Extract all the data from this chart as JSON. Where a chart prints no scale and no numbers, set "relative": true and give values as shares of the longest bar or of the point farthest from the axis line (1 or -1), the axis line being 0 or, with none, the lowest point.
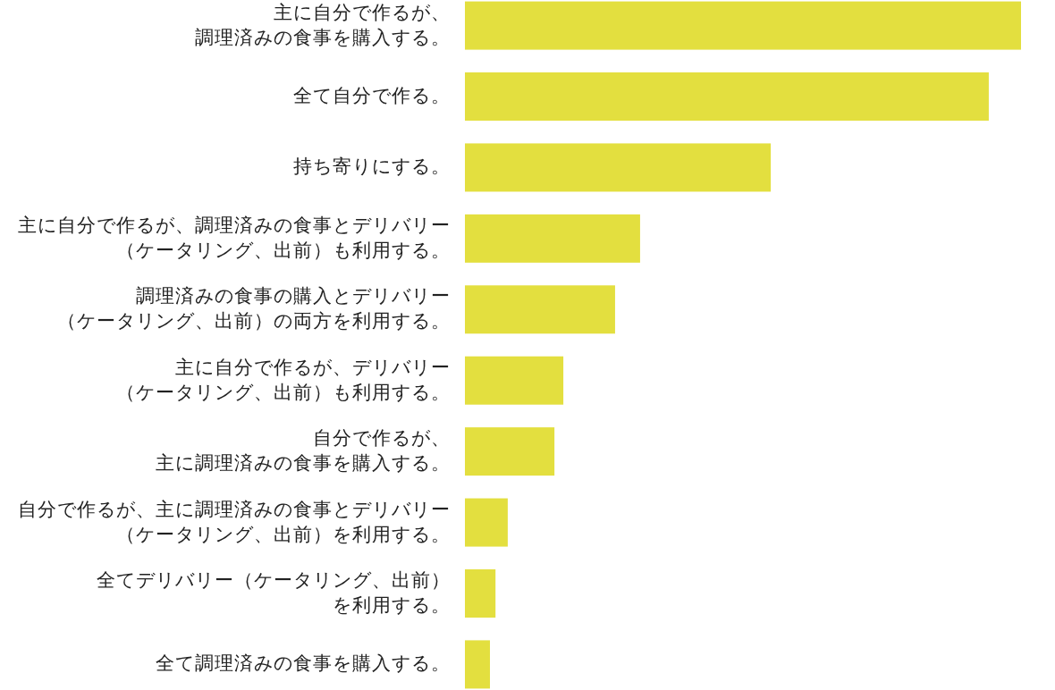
{
  "chart_data": {
    "type": "bar",
    "orientation": "horizontal",
    "relative": true,
    "color": "#e3df3f",
    "categories": [
      "主に自分で作るが、調理済みの食事を購入する。",
      "全て自分で作る。",
      "持ち寄りにする。",
      "主に自分で作るが、調理済みの食事とデリバリー（ケータリング、出前）も利用する。",
      "調理済みの食事の購入とデリバリー（ケータリング、出前）の両方を利用する。",
      "主に自分で作るが、デリバリー（ケータリング、出前）も利用する。",
      "自分で作るが、主に調理済みの食事を購入する。",
      "自分で作るが、主に調理済みの食事とデリバリー（ケータリング、出前）を利用する。",
      "全てデリバリー（ケータリング、出前）を利用する。",
      "全て調理済みの食事を購入する。"
    ],
    "values": [
      1,
      0.942,
      0.55,
      0.315,
      0.27,
      0.177,
      0.161,
      0.077,
      0.055,
      0.045
    ]
  }
}
